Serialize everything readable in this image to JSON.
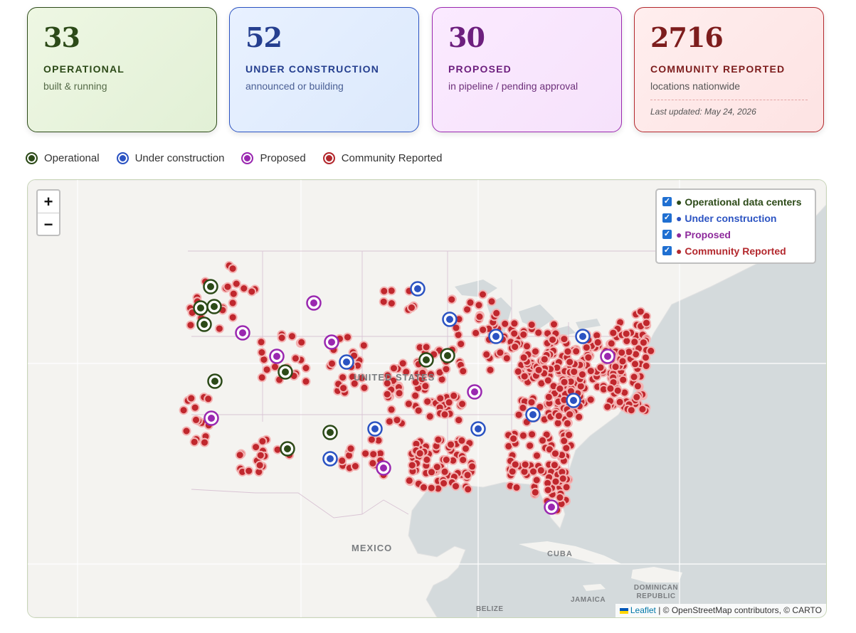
{
  "stats": {
    "operational": {
      "count": "33",
      "label": "OPERATIONAL",
      "sub": "built & running"
    },
    "under_construction": {
      "count": "52",
      "label": "UNDER CONSTRUCTION",
      "sub": "announced or building"
    },
    "proposed": {
      "count": "30",
      "label": "PROPOSED",
      "sub": "in pipeline / pending approval"
    },
    "community_reported": {
      "count": "2716",
      "label": "COMMUNITY REPORTED",
      "sub": "locations nationwide",
      "updated": "Last updated: May 24, 2026"
    }
  },
  "legend": [
    {
      "label": "Operational",
      "color": "#2c4a18"
    },
    {
      "label": "Under construction",
      "color": "#2b53c2"
    },
    {
      "label": "Proposed",
      "color": "#9a28b0"
    },
    {
      "label": "Community Reported",
      "color": "#b3282d"
    }
  ],
  "map": {
    "zoom_in": "+",
    "zoom_out": "−",
    "layers": [
      {
        "label": "● Operational data centers",
        "checked": true,
        "color": "#2c4a18"
      },
      {
        "label": "● Under construction",
        "checked": true,
        "color": "#2b53c2"
      },
      {
        "label": "● Proposed",
        "checked": true,
        "color": "#8e2a9c"
      },
      {
        "label": "● Community Reported",
        "checked": true,
        "color": "#b3282d"
      }
    ],
    "place_labels": {
      "us": "UNITED STATES",
      "mexico": "MEXICO",
      "cuba": "CUBA",
      "dominican": "DOMINICAN REPUBLIC",
      "jamaica": "JAMAICA",
      "belize": "BELIZE"
    },
    "attribution": {
      "leaflet": "Leaflet",
      "rest": " | © OpenStreetMap contributors, © CARTO"
    }
  }
}
